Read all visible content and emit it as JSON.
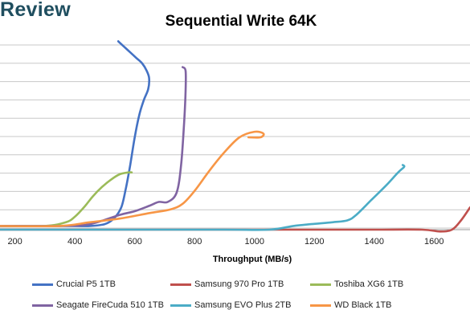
{
  "brand": {
    "name": "Review"
  },
  "chart_data": {
    "type": "line",
    "title": "Sequential Write 64K",
    "xlabel": "Throughput (MB/s)",
    "ylabel": "",
    "xlim": [
      150,
      1720
    ],
    "ylim": [
      0,
      100
    ],
    "xticks": [
      200,
      400,
      600,
      800,
      1000,
      1200,
      1400,
      1600
    ],
    "grid": true,
    "legend_position": "bottom",
    "series": [
      {
        "name": "Crucial P5 1TB",
        "color": "#4472c4",
        "x": [
          150,
          350,
          450,
          500,
          530,
          555,
          570,
          585,
          600,
          615,
          630,
          645,
          648,
          640,
          625,
          605,
          585,
          565,
          545
        ],
        "y": [
          2,
          2,
          2,
          3,
          6,
          12,
          22,
          35,
          50,
          62,
          70,
          76,
          82,
          86,
          90,
          93,
          96,
          99,
          102
        ]
      },
      {
        "name": "Samsung 970 Pro 1TB",
        "color": "#c0504d",
        "x": [
          150,
          400,
          600,
          800,
          1000,
          1200,
          1400,
          1560,
          1620,
          1660,
          1690,
          1720
        ],
        "y": [
          0,
          0,
          0,
          0,
          0,
          0,
          0,
          0,
          -1,
          0,
          5,
          12
        ]
      },
      {
        "name": "Toshiba XG6 1TB",
        "color": "#9bbb59",
        "x": [
          150,
          300,
          370,
          400,
          430,
          460,
          490,
          520,
          550,
          580,
          590
        ],
        "y": [
          2,
          2,
          4,
          7,
          12,
          18,
          23,
          27,
          30,
          31,
          31
        ]
      },
      {
        "name": "Seagate FireCuda 510 1TB",
        "color": "#8064a2",
        "x": [
          150,
          350,
          450,
          550,
          600,
          650,
          680,
          710,
          740,
          755,
          765,
          770,
          770,
          760
        ],
        "y": [
          2,
          2,
          3,
          8,
          10,
          13,
          15,
          15,
          20,
          35,
          58,
          75,
          86,
          88
        ]
      },
      {
        "name": "Samsung EVO Plus 2TB",
        "color": "#4bacc6",
        "x": [
          150,
          600,
          900,
          1050,
          1130,
          1190,
          1260,
          1310,
          1340,
          1390,
          1440,
          1480,
          1500,
          1495
        ],
        "y": [
          0,
          0,
          0,
          0,
          2,
          3,
          4,
          5,
          8,
          16,
          24,
          31,
          34,
          35
        ]
      },
      {
        "name": "WD Black 1TB",
        "color": "#f79646",
        "x": [
          150,
          350,
          450,
          550,
          650,
          720,
          760,
          800,
          850,
          900,
          950,
          1000,
          1030,
          1020,
          980
        ],
        "y": [
          2,
          2,
          4,
          6,
          9,
          11,
          14,
          21,
          32,
          42,
          50,
          53,
          52,
          50,
          50
        ]
      }
    ]
  }
}
